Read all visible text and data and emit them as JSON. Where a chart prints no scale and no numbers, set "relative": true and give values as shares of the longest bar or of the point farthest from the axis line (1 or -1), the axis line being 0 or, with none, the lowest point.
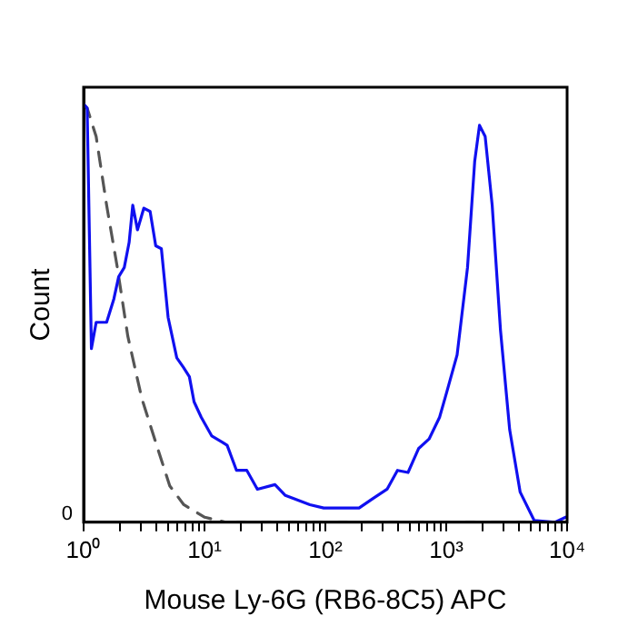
{
  "chart_data": {
    "type": "line",
    "xlabel": "Mouse Ly-6G (RB6-8C5) APC",
    "ylabel": "Count",
    "log": "x",
    "relative": true,
    "grid": false,
    "legend": false,
    "marker": "none",
    "xlim": [
      1,
      10000
    ],
    "xticks": [
      {
        "value": 1,
        "label": "10⁰"
      },
      {
        "value": 2,
        "label": null
      },
      {
        "value": 3,
        "label": null
      },
      {
        "value": 4,
        "label": null
      },
      {
        "value": 5,
        "label": null
      },
      {
        "value": 6,
        "label": null
      },
      {
        "value": 7,
        "label": null
      },
      {
        "value": 8,
        "label": null
      },
      {
        "value": 9,
        "label": null
      },
      {
        "value": 10,
        "label": "10¹"
      },
      {
        "value": 20,
        "label": null
      },
      {
        "value": 30,
        "label": null
      },
      {
        "value": 40,
        "label": null
      },
      {
        "value": 50,
        "label": null
      },
      {
        "value": 60,
        "label": null
      },
      {
        "value": 70,
        "label": null
      },
      {
        "value": 80,
        "label": null
      },
      {
        "value": 90,
        "label": null
      },
      {
        "value": 100,
        "label": "10²"
      },
      {
        "value": 200,
        "label": null
      },
      {
        "value": 300,
        "label": null
      },
      {
        "value": 400,
        "label": null
      },
      {
        "value": 500,
        "label": null
      },
      {
        "value": 600,
        "label": null
      },
      {
        "value": 700,
        "label": null
      },
      {
        "value": 800,
        "label": null
      },
      {
        "value": 900,
        "label": null
      },
      {
        "value": 1000,
        "label": "10³"
      },
      {
        "value": 2000,
        "label": null
      },
      {
        "value": 3000,
        "label": null
      },
      {
        "value": 4000,
        "label": null
      },
      {
        "value": 5000,
        "label": null
      },
      {
        "value": 6000,
        "label": null
      },
      {
        "value": 7000,
        "label": null
      },
      {
        "value": 8000,
        "label": null
      },
      {
        "value": 9000,
        "label": null
      },
      {
        "value": 10000,
        "label": "10⁴"
      }
    ],
    "annotations": [
      "0"
    ],
    "series": [
      {
        "color": "#1010f0",
        "line_style": "solid",
        "x": [
          1,
          1.07,
          1.16,
          1.27,
          1.55,
          1.78,
          1.95,
          2.17,
          2.38,
          2.55,
          2.79,
          3.15,
          3.55,
          3.95,
          4.4,
          5.0,
          5.9,
          6.7,
          7.5,
          8.2,
          9.4,
          11.5,
          14.1,
          15.4,
          18.4,
          22.4,
          27.4,
          38.3,
          46.7,
          74.5,
          97,
          190,
          248,
          324,
          395,
          483,
          590,
          721,
          881,
          1007,
          1230,
          1500,
          1720,
          1885,
          2100,
          2400,
          2810,
          3350,
          4090,
          5350,
          7970,
          9730
        ],
        "values": [
          1.0,
          0.99,
          0.415,
          0.478,
          0.478,
          0.534,
          0.587,
          0.609,
          0.669,
          0.758,
          0.699,
          0.751,
          0.743,
          0.661,
          0.654,
          0.49,
          0.393,
          0.37,
          0.348,
          0.288,
          0.251,
          0.206,
          0.191,
          0.184,
          0.124,
          0.124,
          0.079,
          0.09,
          0.064,
          0.042,
          0.034,
          0.034,
          0.057,
          0.079,
          0.124,
          0.119,
          0.176,
          0.199,
          0.251,
          0.31,
          0.4,
          0.609,
          0.863,
          0.949,
          0.922,
          0.758,
          0.46,
          0.221,
          0.072,
          0.004,
          0,
          0.012
        ]
      },
      {
        "color": "#555555",
        "line_style": "dashed",
        "x": [
          1,
          1.07,
          1.27,
          1.55,
          1.9,
          2.32,
          3.03,
          3.95,
          5.16,
          6.74,
          10.05,
          15,
          50,
          200,
          1000,
          9730
        ],
        "values": [
          1.0,
          0.99,
          0.922,
          0.758,
          0.609,
          0.445,
          0.296,
          0.191,
          0.087,
          0.042,
          0.012,
          0,
          0,
          0,
          0,
          0
        ]
      }
    ]
  }
}
